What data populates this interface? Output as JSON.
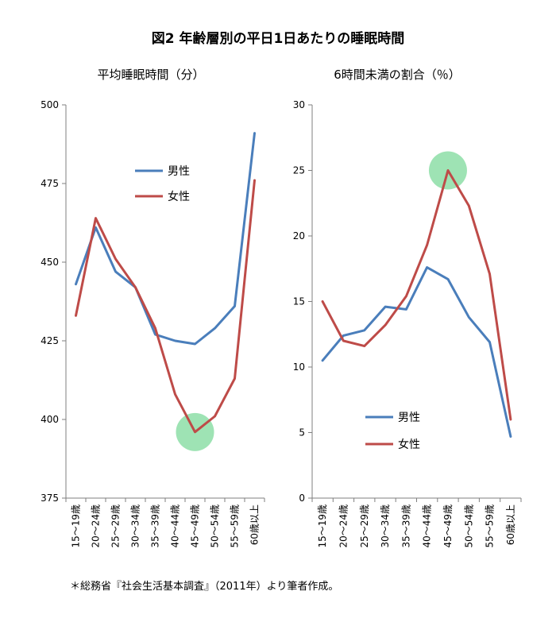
{
  "figure": {
    "title": "図2  年齢層別の平日1日あたりの睡眠時間",
    "note": "＊総務省『社会生活基本調査』（2011年）より筆者作成。"
  },
  "colors": {
    "male": "#4a7ebb",
    "female": "#be4b48",
    "highlight": "#7dd99b",
    "axis": "#7f7f7f"
  },
  "chart_data": [
    {
      "type": "line",
      "title": "平均睡眠時間（分）",
      "categories": [
        "15～19歳",
        "20～24歳",
        "25～29歳",
        "30～34歳",
        "35～39歳",
        "40～44歳",
        "45～49歳",
        "50～54歳",
        "55～59歳",
        "60歳以上"
      ],
      "series": [
        {
          "name": "男性",
          "values": [
            443,
            461,
            447,
            442,
            427,
            425,
            424,
            429,
            436,
            491
          ]
        },
        {
          "name": "女性",
          "values": [
            433,
            464,
            451,
            442,
            429,
            408,
            396,
            401,
            413,
            476
          ]
        }
      ],
      "ylim": [
        375,
        500
      ],
      "yticks": [
        375,
        400,
        425,
        450,
        475,
        500
      ],
      "highlight": {
        "category": "45～49歳",
        "value": 396
      },
      "legend": "upper-middle"
    },
    {
      "type": "line",
      "title": "6時間未満の割合（％）",
      "categories": [
        "15～19歳",
        "20～24歳",
        "25～29歳",
        "30～34歳",
        "35～39歳",
        "40～44歳",
        "45～49歳",
        "50～54歳",
        "55～59歳",
        "60歳以上"
      ],
      "series": [
        {
          "name": "男性",
          "values": [
            10.5,
            12.4,
            12.8,
            14.6,
            14.4,
            17.6,
            16.7,
            13.8,
            11.9,
            4.7
          ]
        },
        {
          "name": "女性",
          "values": [
            15.0,
            12.0,
            11.6,
            13.2,
            15.4,
            19.3,
            25.0,
            22.3,
            17.1,
            6.0
          ]
        }
      ],
      "ylim": [
        0,
        30
      ],
      "yticks": [
        0,
        5,
        10,
        15,
        20,
        25,
        30
      ],
      "highlight": {
        "category": "45～49歳",
        "value": 25.0
      },
      "legend": "lower-middle"
    }
  ]
}
